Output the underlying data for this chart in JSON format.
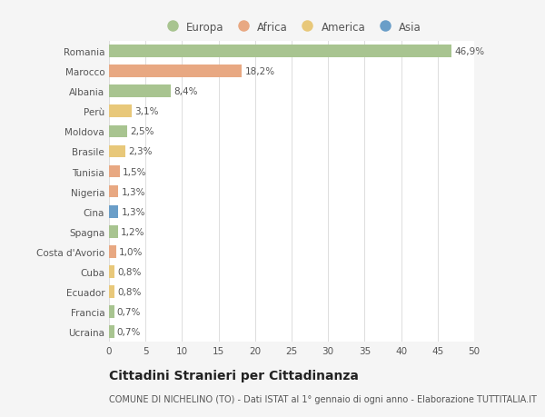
{
  "countries": [
    "Romania",
    "Marocco",
    "Albania",
    "Perù",
    "Moldova",
    "Brasile",
    "Tunisia",
    "Nigeria",
    "Cina",
    "Spagna",
    "Costa d'Avorio",
    "Cuba",
    "Ecuador",
    "Francia",
    "Ucraina"
  ],
  "values": [
    46.9,
    18.2,
    8.4,
    3.1,
    2.5,
    2.3,
    1.5,
    1.3,
    1.3,
    1.2,
    1.0,
    0.8,
    0.8,
    0.7,
    0.7
  ],
  "labels": [
    "46,9%",
    "18,2%",
    "8,4%",
    "3,1%",
    "2,5%",
    "2,3%",
    "1,5%",
    "1,3%",
    "1,3%",
    "1,2%",
    "1,0%",
    "0,8%",
    "0,8%",
    "0,7%",
    "0,7%"
  ],
  "continents": [
    "Europa",
    "Africa",
    "Europa",
    "America",
    "Europa",
    "America",
    "Africa",
    "Africa",
    "Asia",
    "Europa",
    "Africa",
    "America",
    "America",
    "Europa",
    "Europa"
  ],
  "continent_colors": {
    "Europa": "#a8c490",
    "Africa": "#e8a882",
    "America": "#e8c87a",
    "Asia": "#6a9ec8"
  },
  "legend_labels": [
    "Europa",
    "Africa",
    "America",
    "Asia"
  ],
  "legend_colors": [
    "#a8c490",
    "#e8a882",
    "#e8c87a",
    "#6a9ec8"
  ],
  "title": "Cittadini Stranieri per Cittadinanza",
  "subtitle": "COMUNE DI NICHELINO (TO) - Dati ISTAT al 1° gennaio di ogni anno - Elaborazione TUTTITALIA.IT",
  "xlim": [
    0,
    50
  ],
  "xticks": [
    0,
    5,
    10,
    15,
    20,
    25,
    30,
    35,
    40,
    45,
    50
  ],
  "background_color": "#f5f5f5",
  "bar_background": "#ffffff",
  "grid_color": "#dddddd",
  "text_color": "#555555",
  "label_fontsize": 7.5,
  "tick_fontsize": 7.5,
  "title_fontsize": 10,
  "subtitle_fontsize": 7.0
}
